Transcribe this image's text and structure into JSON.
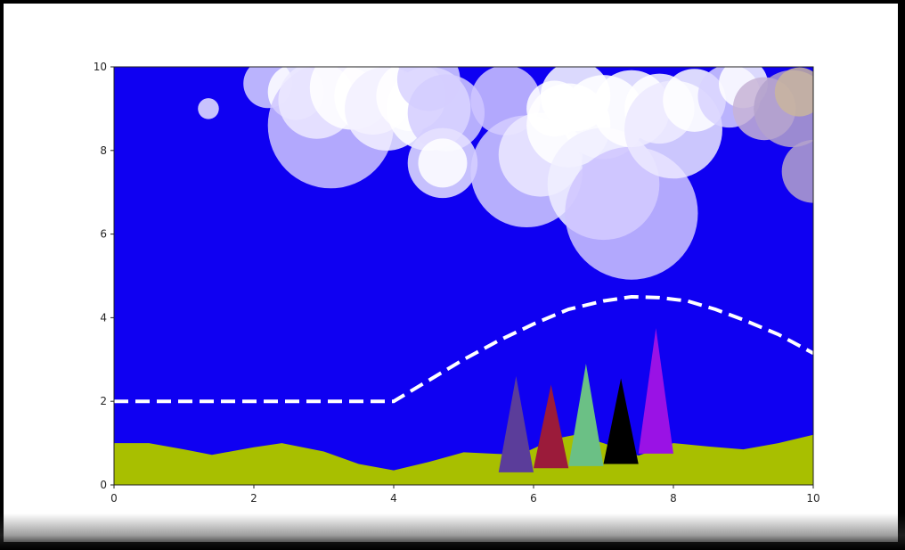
{
  "chart_data": {
    "type": "scatter",
    "title": "",
    "xlabel": "",
    "ylabel": "",
    "xlim": [
      0,
      10
    ],
    "ylim": [
      0,
      10
    ],
    "x_ticks": [
      0,
      2,
      4,
      6,
      8,
      10
    ],
    "y_ticks": [
      0,
      2,
      4,
      6,
      8,
      10
    ],
    "x_tick_labels": [
      "0",
      "2",
      "4",
      "6",
      "8",
      "10"
    ],
    "y_tick_labels": [
      "0",
      "2",
      "4",
      "6",
      "8",
      "10"
    ],
    "grid": false,
    "legend": "none",
    "sky_color": "#0f00f2",
    "ground_color": "#a8bf00",
    "ground": {
      "x": [
        0,
        0.5,
        1,
        1.4,
        2,
        2.4,
        3,
        3.5,
        4,
        4.5,
        5,
        5.4,
        5.8,
        6.3,
        6.6,
        7,
        7.5,
        8,
        8.5,
        9,
        9.5,
        10
      ],
      "y": [
        1.0,
        1.0,
        0.85,
        0.72,
        0.9,
        1.0,
        0.8,
        0.5,
        0.35,
        0.55,
        0.78,
        0.75,
        0.72,
        1.1,
        1.2,
        1.0,
        0.7,
        1.0,
        0.92,
        0.85,
        1.0,
        1.2
      ]
    },
    "road": {
      "style": "dashed",
      "color": "#ffffff",
      "x": [
        0,
        4,
        4.5,
        5,
        5.5,
        6,
        6.5,
        7,
        7.4,
        7.8,
        8.2,
        8.6,
        9,
        9.5,
        10
      ],
      "y": [
        2,
        2,
        2.5,
        3.0,
        3.45,
        3.85,
        4.2,
        4.4,
        4.5,
        4.48,
        4.4,
        4.2,
        3.95,
        3.6,
        3.15
      ]
    },
    "clouds": [
      {
        "x": 1.35,
        "y": 9.0,
        "r": 0.15,
        "color": "#e9e4ff"
      },
      {
        "x": 2.2,
        "y": 9.6,
        "r": 0.35,
        "color": "#d8d2ff"
      },
      {
        "x": 2.6,
        "y": 9.4,
        "r": 0.4,
        "color": "#ffffff"
      },
      {
        "x": 3.1,
        "y": 8.6,
        "r": 0.9,
        "color": "#cfc6ff"
      },
      {
        "x": 2.9,
        "y": 9.2,
        "r": 0.55,
        "color": "#ece9ff"
      },
      {
        "x": 3.4,
        "y": 9.5,
        "r": 0.6,
        "color": "#ffffff"
      },
      {
        "x": 3.7,
        "y": 9.3,
        "r": 0.55,
        "color": "#ffffff"
      },
      {
        "x": 3.9,
        "y": 9.0,
        "r": 0.6,
        "color": "#f2f0ff"
      },
      {
        "x": 4.25,
        "y": 9.3,
        "r": 0.5,
        "color": "#ffffff"
      },
      {
        "x": 4.5,
        "y": 9.0,
        "r": 0.6,
        "color": "#ffffff"
      },
      {
        "x": 4.5,
        "y": 9.7,
        "r": 0.45,
        "color": "#d8d2ff"
      },
      {
        "x": 4.75,
        "y": 8.9,
        "r": 0.55,
        "color": "#d4ccff"
      },
      {
        "x": 4.7,
        "y": 7.7,
        "r": 0.5,
        "color": "#e6e2ff"
      },
      {
        "x": 4.7,
        "y": 7.7,
        "r": 0.35,
        "color": "#ffffff"
      },
      {
        "x": 5.6,
        "y": 9.2,
        "r": 0.5,
        "color": "#cfc6ff"
      },
      {
        "x": 5.9,
        "y": 7.5,
        "r": 0.8,
        "color": "#d4ccff"
      },
      {
        "x": 6.1,
        "y": 7.9,
        "r": 0.6,
        "color": "#ece9ff"
      },
      {
        "x": 6.5,
        "y": 8.6,
        "r": 0.6,
        "color": "#ffffff"
      },
      {
        "x": 6.3,
        "y": 9.0,
        "r": 0.4,
        "color": "#ffffff"
      },
      {
        "x": 6.6,
        "y": 9.3,
        "r": 0.5,
        "color": "#ffffff"
      },
      {
        "x": 7.0,
        "y": 8.8,
        "r": 0.6,
        "color": "#ffffff"
      },
      {
        "x": 7.0,
        "y": 7.2,
        "r": 0.8,
        "color": "#f0eeff"
      },
      {
        "x": 7.4,
        "y": 6.5,
        "r": 0.95,
        "color": "#cfc6ff"
      },
      {
        "x": 7.4,
        "y": 9.0,
        "r": 0.55,
        "color": "#ffffff"
      },
      {
        "x": 7.8,
        "y": 9.0,
        "r": 0.5,
        "color": "#ffffff"
      },
      {
        "x": 8.0,
        "y": 8.5,
        "r": 0.7,
        "color": "#ece9ff"
      },
      {
        "x": 8.3,
        "y": 9.2,
        "r": 0.45,
        "color": "#ffffff"
      },
      {
        "x": 8.8,
        "y": 9.3,
        "r": 0.45,
        "color": "#d8d2ff"
      },
      {
        "x": 9.0,
        "y": 9.6,
        "r": 0.35,
        "color": "#ffffff"
      },
      {
        "x": 9.3,
        "y": 9.0,
        "r": 0.45,
        "color": "#c7b3d6"
      },
      {
        "x": 9.7,
        "y": 9.0,
        "r": 0.55,
        "color": "#b4a2cc"
      },
      {
        "x": 9.8,
        "y": 9.4,
        "r": 0.35,
        "color": "#c9b59e"
      },
      {
        "x": 10.0,
        "y": 7.5,
        "r": 0.45,
        "color": "#b4a2cc"
      }
    ],
    "trees": [
      {
        "x": 5.75,
        "base": 0.3,
        "height": 2.3,
        "half_width": 0.25,
        "color": "#5b3d9a"
      },
      {
        "x": 6.25,
        "base": 0.4,
        "height": 2.0,
        "half_width": 0.25,
        "color": "#9b1b3a"
      },
      {
        "x": 6.75,
        "base": 0.45,
        "height": 2.45,
        "half_width": 0.25,
        "color": "#6bc085"
      },
      {
        "x": 7.25,
        "base": 0.5,
        "height": 2.05,
        "half_width": 0.25,
        "color": "#000000"
      },
      {
        "x": 7.75,
        "base": 0.75,
        "height": 3.0,
        "half_width": 0.25,
        "color": "#9a12e5"
      }
    ]
  }
}
